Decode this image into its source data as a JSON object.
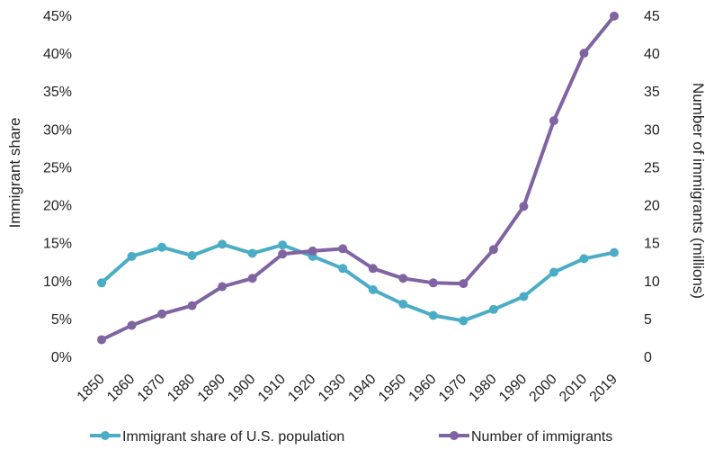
{
  "chart_data": {
    "type": "line",
    "categories": [
      "1850",
      "1860",
      "1870",
      "1880",
      "1890",
      "1900",
      "1910",
      "1920",
      "1930",
      "1940",
      "1950",
      "1960",
      "1970",
      "1980",
      "1990",
      "2000",
      "2010",
      "2019"
    ],
    "series": [
      {
        "name": "Immigrant share of U.S. population",
        "axis": "left",
        "color": "#4BACC6",
        "values": [
          9.7,
          13.2,
          14.4,
          13.3,
          14.8,
          13.6,
          14.7,
          13.2,
          11.6,
          8.8,
          6.9,
          5.4,
          4.7,
          6.2,
          7.9,
          11.1,
          12.9,
          13.7
        ]
      },
      {
        "name": "Number of immigrants",
        "axis": "right",
        "color": "#8064A2",
        "values": [
          2.2,
          4.1,
          5.6,
          6.7,
          9.2,
          10.3,
          13.5,
          13.9,
          14.2,
          11.6,
          10.3,
          9.7,
          9.6,
          14.1,
          19.8,
          31.1,
          40.0,
          44.9
        ]
      }
    ],
    "ylabel_left": "Immigrant share",
    "ylabel_right": "Number of immigrants (millions)",
    "ylim_left": [
      0,
      45
    ],
    "ylim_right": [
      0,
      45
    ],
    "yticks_left": [
      "0%",
      "5%",
      "10%",
      "15%",
      "20%",
      "25%",
      "30%",
      "35%",
      "40%",
      "45%"
    ],
    "yticks_right": [
      "0",
      "5",
      "10",
      "15",
      "20",
      "25",
      "30",
      "35",
      "40",
      "45"
    ],
    "grid": false,
    "legend_position": "bottom"
  }
}
